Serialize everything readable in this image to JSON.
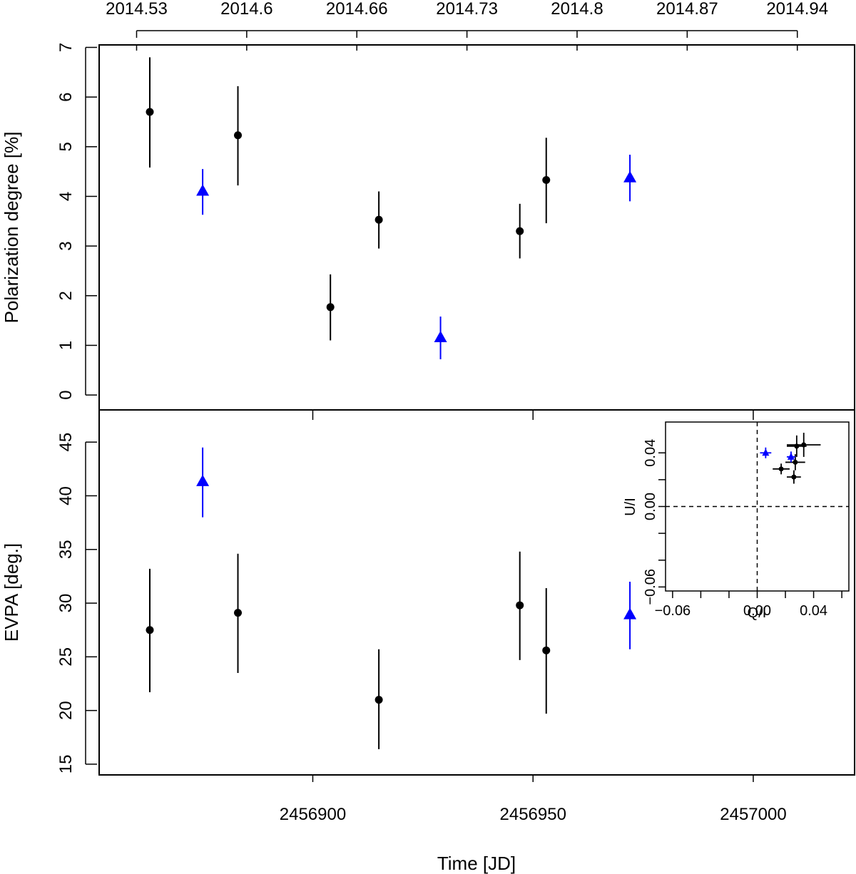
{
  "figure": {
    "top_axis": {
      "label": "",
      "ticks": [
        "2014.53",
        "2014.6",
        "2014.66",
        "2014.73",
        "2014.8",
        "2014.87",
        "2014.94"
      ],
      "tick_jd": [
        2456860,
        2456885,
        2456910,
        2456935,
        2456960,
        2456985,
        2457010
      ]
    },
    "xaxis": {
      "label": "Time [JD]",
      "ticks": [
        "2456900",
        "2456950",
        "2457000"
      ],
      "tick_values": [
        2456900,
        2456950,
        2457000
      ],
      "range": [
        2456851.5,
        2457023
      ]
    },
    "colors": {
      "black_series": "#000000",
      "blue_series": "#0000ff"
    }
  },
  "chart_data": [
    {
      "type": "scatter",
      "name": "polarization-degree",
      "title": "",
      "xlabel": "",
      "ylabel": "Polarization degree [%]",
      "ylim": [
        -0.3,
        7.05
      ],
      "yticks": [
        0,
        1,
        2,
        3,
        4,
        5,
        6,
        7
      ],
      "ytick_labels": [
        "0",
        "1",
        "2",
        "3",
        "4",
        "5",
        "6",
        "7"
      ],
      "series": [
        {
          "name": "black-circles",
          "marker": "circle",
          "color": "#000000",
          "x": [
            2456863,
            2456883,
            2456904,
            2456915,
            2456947,
            2456953
          ],
          "y": [
            5.7,
            5.23,
            1.77,
            3.53,
            3.3,
            4.33
          ],
          "yerr_low": [
            4.58,
            4.22,
            1.1,
            2.95,
            2.75,
            3.46
          ],
          "yerr_high": [
            6.8,
            6.22,
            2.43,
            4.1,
            3.85,
            5.18
          ]
        },
        {
          "name": "blue-triangles",
          "marker": "triangle",
          "color": "#0000ff",
          "x": [
            2456875,
            2456929,
            2456972
          ],
          "y": [
            4.1,
            1.15,
            4.37
          ],
          "yerr_low": [
            3.63,
            0.72,
            3.9
          ],
          "yerr_high": [
            4.55,
            1.58,
            4.84
          ]
        }
      ]
    },
    {
      "type": "scatter",
      "name": "evpa",
      "title": "",
      "xlabel": "Time [JD]",
      "ylabel": "EVPA [deg.]",
      "ylim": [
        14,
        48
      ],
      "yticks": [
        15,
        20,
        25,
        30,
        35,
        40,
        45
      ],
      "ytick_labels": [
        "15",
        "20",
        "25",
        "30",
        "35",
        "40",
        "45"
      ],
      "series": [
        {
          "name": "black-circles",
          "marker": "circle",
          "color": "#000000",
          "x": [
            2456863,
            2456883,
            2456915,
            2456947,
            2456953
          ],
          "y": [
            27.5,
            29.1,
            21.0,
            29.8,
            25.6
          ],
          "yerr_low": [
            21.7,
            23.5,
            16.4,
            24.7,
            19.7
          ],
          "yerr_high": [
            33.2,
            34.6,
            25.7,
            34.8,
            31.4
          ]
        },
        {
          "name": "blue-triangles",
          "marker": "triangle",
          "color": "#0000ff",
          "x": [
            2456875,
            2456972
          ],
          "y": [
            41.3,
            28.9
          ],
          "yerr_low": [
            38.0,
            25.7
          ],
          "yerr_high": [
            44.5,
            32.0
          ]
        }
      ]
    },
    {
      "type": "scatter",
      "name": "qu-plane-inset",
      "title": "",
      "xlabel": "Q/I",
      "ylabel": "U/I",
      "xlim": [
        -0.065,
        0.065
      ],
      "ylim": [
        -0.063,
        0.063
      ],
      "xticks": [
        -0.06,
        0.0,
        0.04
      ],
      "xtick_labels": [
        "−0.06",
        "0.00",
        "0.04"
      ],
      "xtick_marks": [
        -0.06,
        -0.04,
        -0.02,
        0.0,
        0.02,
        0.04,
        0.06
      ],
      "yticks": [
        -0.06,
        0.0,
        0.04
      ],
      "ytick_labels": [
        "−0.06",
        "0.00",
        "0.04"
      ],
      "ytick_marks": [
        -0.06,
        -0.04,
        -0.02,
        0.0,
        0.02,
        0.04
      ],
      "zero_lines": "dashed",
      "series": [
        {
          "name": "black-points",
          "marker": "circle",
          "color": "#000000",
          "x": [
            0.017,
            0.026,
            0.027,
            0.028,
            0.033
          ],
          "y": [
            0.028,
            0.022,
            0.033,
            0.045,
            0.046
          ],
          "xerr": [
            0.006,
            0.005,
            0.007,
            0.007,
            0.012
          ],
          "yerr": [
            0.004,
            0.005,
            0.006,
            0.008,
            0.009
          ]
        },
        {
          "name": "blue-points",
          "marker": "triangle",
          "color": "#0000ff",
          "x": [
            0.006,
            0.024
          ],
          "y": [
            0.04,
            0.037
          ],
          "xerr": [
            0.004,
            0.003
          ],
          "yerr": [
            0.004,
            0.004
          ]
        }
      ]
    }
  ]
}
